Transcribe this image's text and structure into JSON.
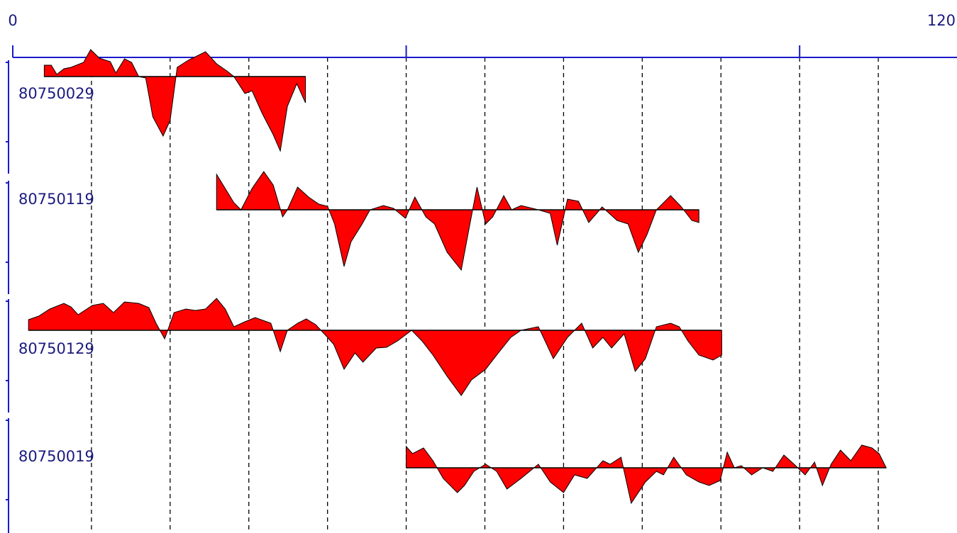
{
  "chart_data": {
    "type": "area",
    "xlim": [
      0,
      120
    ],
    "xticks": [
      0,
      120
    ],
    "tick_marks": [
      0,
      50,
      100
    ],
    "grid_x": [
      10,
      20,
      30,
      40,
      50,
      60,
      70,
      80,
      90,
      100,
      110
    ],
    "ylim": [
      -100,
      100
    ],
    "color": "#ff0000",
    "outline": "#000000",
    "axis_color": "#1a1acc",
    "series": [
      {
        "name": "80750029",
        "x": [
          4.0,
          4.9,
          5.6,
          6.5,
          7.4,
          9.0,
          9.9,
          11.0,
          12.4,
          13.1,
          14.2,
          15.1,
          16.0,
          16.9,
          17.8,
          19.1,
          20.0,
          20.9,
          22.3,
          24.5,
          25.9,
          27.2,
          28.1,
          29.5,
          30.4,
          31.7,
          33.1,
          34.0,
          34.9,
          36.1,
          37.2
        ],
        "values": [
          16,
          16,
          3,
          11,
          13,
          20,
          38,
          26,
          21,
          5,
          25,
          20,
          0,
          -2,
          -57,
          -84,
          -62,
          13,
          23,
          35,
          18,
          8,
          0,
          -24,
          -20,
          -52,
          -82,
          -105,
          -42,
          -10,
          -37
        ]
      },
      {
        "name": "80750119",
        "x": [
          25.9,
          27.0,
          28.1,
          29.0,
          30.4,
          31.9,
          33.1,
          34.3,
          34.9,
          36.2,
          37.6,
          38.9,
          40.0,
          40.9,
          42.1,
          43.0,
          44.4,
          45.4,
          47.1,
          48.4,
          49.9,
          51.1,
          52.5,
          53.6,
          55.2,
          57.0,
          58.1,
          59.0,
          60.1,
          61.0,
          62.4,
          63.4,
          64.6,
          66.8,
          68.3,
          69.2,
          70.5,
          71.9,
          73.2,
          74.9,
          76.8,
          78.2,
          79.5,
          80.6,
          81.8,
          83.6,
          84.9,
          86.3,
          87.2
        ],
        "values": [
          50,
          30,
          10,
          0,
          30,
          54,
          35,
          -10,
          0,
          32,
          18,
          8,
          5,
          -20,
          -80,
          -45,
          -20,
          0,
          6,
          2,
          -12,
          18,
          -10,
          -20,
          -60,
          -85,
          -20,
          32,
          -20,
          -10,
          20,
          0,
          6,
          0,
          -5,
          -50,
          15,
          12,
          -18,
          4,
          -15,
          -20,
          -60,
          -35,
          0,
          20,
          5,
          -15,
          -18
        ]
      },
      {
        "name": "80750129",
        "x": [
          2.0,
          3.3,
          4.7,
          6.5,
          7.4,
          8.3,
          10.1,
          11.5,
          12.8,
          14.2,
          16.0,
          17.3,
          18.2,
          19.3,
          20.5,
          22.0,
          23.2,
          24.5,
          25.9,
          27.0,
          28.1,
          29.5,
          30.8,
          32.8,
          34.0,
          34.9,
          36.2,
          37.3,
          38.5,
          40.0,
          40.8,
          42.1,
          43.5,
          44.5,
          46.2,
          47.5,
          48.9,
          50.7,
          52.0,
          53.4,
          55.2,
          57.0,
          58.3,
          60.1,
          61.5,
          63.3,
          64.6,
          66.8,
          68.7,
          70.5,
          72.3,
          73.7,
          75.0,
          76.1,
          77.7,
          79.1,
          80.4,
          81.8,
          83.6,
          84.7,
          85.8,
          87.2,
          89.0,
          90.1
        ],
        "values": [
          15,
          20,
          30,
          38,
          33,
          22,
          35,
          38,
          25,
          40,
          38,
          32,
          10,
          -12,
          25,
          30,
          28,
          30,
          45,
          30,
          5,
          12,
          18,
          10,
          -30,
          0,
          10,
          16,
          8,
          -10,
          -20,
          -55,
          -32,
          -45,
          -25,
          -24,
          -15,
          0,
          -15,
          -35,
          -65,
          -92,
          -70,
          -55,
          -35,
          -10,
          0,
          5,
          -40,
          -10,
          10,
          -25,
          -10,
          -25,
          -5,
          -58,
          -40,
          5,
          10,
          5,
          -15,
          -35,
          -42,
          -35
        ]
      },
      {
        "name": "80750019",
        "x": [
          50.0,
          50.8,
          52.2,
          53.4,
          54.7,
          56.5,
          57.4,
          58.6,
          60.1,
          61.5,
          62.8,
          64.6,
          66.8,
          68.3,
          70.0,
          71.4,
          73.0,
          75.0,
          75.9,
          77.3,
          78.6,
          80.4,
          81.8,
          82.7,
          84.0,
          85.6,
          87.2,
          88.5,
          89.9,
          90.8,
          91.7,
          92.6,
          93.9,
          95.3,
          96.6,
          98.0,
          99.3,
          100.7,
          101.9,
          102.9,
          104.0,
          105.2,
          106.5,
          107.9,
          109.2,
          110.1,
          111.0
        ],
        "values": [
          30,
          20,
          28,
          10,
          -15,
          -35,
          -25,
          -5,
          5,
          -5,
          -30,
          -15,
          5,
          -20,
          -35,
          -10,
          -15,
          10,
          5,
          15,
          -50,
          -20,
          -5,
          -10,
          15,
          -10,
          -20,
          -25,
          -18,
          22,
          0,
          3,
          -10,
          0,
          -5,
          18,
          5,
          -10,
          8,
          -25,
          5,
          25,
          10,
          32,
          28,
          20,
          0
        ]
      }
    ]
  }
}
